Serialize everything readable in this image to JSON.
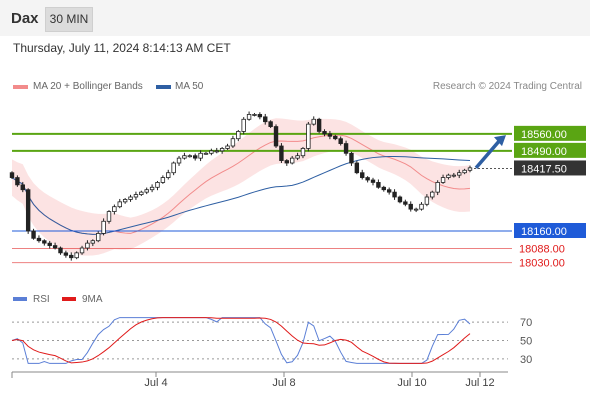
{
  "header": {
    "symbol": "Dax",
    "timeframe": "30 MIN"
  },
  "datetime": "Thursday, July 11, 2024 8:14:13 AM CET",
  "legend": {
    "items": [
      {
        "label": "MA 20 + Bollinger Bands",
        "color": "#f28b8b"
      },
      {
        "label": "MA 50",
        "color": "#2e5fa3"
      }
    ],
    "credit": "Research © 2024 Trading Central"
  },
  "rsi_legend": {
    "items": [
      {
        "label": "RSI",
        "color": "#5b7fd6"
      },
      {
        "label": "9MA",
        "color": "#e01b1b"
      }
    ]
  },
  "chart_data": [
    {
      "type": "candlestick",
      "title": "",
      "x_tick_labels": [
        "Jul 4",
        "Jul 8",
        "Jul 10",
        "Jul 12"
      ],
      "ylim": [
        17950,
        18720
      ],
      "grid": false,
      "legend_position": "top-left",
      "price_levels": [
        {
          "label": "18560.00",
          "value": 18560,
          "color": "#5aa513",
          "kind": "resistance"
        },
        {
          "label": "18490.00",
          "value": 18490,
          "color": "#5aa513",
          "kind": "resistance"
        },
        {
          "label": "18417.50",
          "value": 18417.5,
          "color": "#333333",
          "kind": "last"
        },
        {
          "label": "18160.00",
          "value": 18160,
          "color": "#1f5bd8",
          "kind": "pivot"
        },
        {
          "label": "18088.00",
          "value": 18088,
          "color": "#e01b1b",
          "kind": "support"
        },
        {
          "label": "18030.00",
          "value": 18030,
          "color": "#e01b1b",
          "kind": "support"
        }
      ],
      "trend_arrow": {
        "from": 18420,
        "to": 18555,
        "color": "#2e5fa3"
      },
      "candles_approx": [
        18380,
        18350,
        18330,
        18160,
        18130,
        18120,
        18110,
        18100,
        18090,
        18070,
        18060,
        18050,
        18070,
        18090,
        18110,
        18120,
        18150,
        18200,
        18240,
        18260,
        18280,
        18290,
        18300,
        18310,
        18320,
        18330,
        18340,
        18360,
        18380,
        18400,
        18440,
        18460,
        18470,
        18470,
        18460,
        18480,
        18480,
        18490,
        18490,
        18500,
        18510,
        18540,
        18570,
        18620,
        18640,
        18640,
        18630,
        18610,
        18590,
        18510,
        18450,
        18440,
        18460,
        18470,
        18500,
        18600,
        18620,
        18570,
        18560,
        18550,
        18540,
        18520,
        18480,
        18440,
        18400,
        18380,
        18370,
        18360,
        18340,
        18330,
        18320,
        18300,
        18280,
        18270,
        18250,
        18250,
        18270,
        18300,
        18320,
        18360,
        18380,
        18390,
        18390,
        18400,
        18410,
        18420
      ]
    },
    {
      "type": "line",
      "title": "",
      "series": [
        {
          "name": "RSI",
          "color": "#5b7fd6"
        },
        {
          "name": "9MA",
          "color": "#e01b1b"
        }
      ],
      "yticks": [
        70,
        50,
        30
      ],
      "ylim": [
        20,
        80
      ],
      "grid": false
    }
  ]
}
